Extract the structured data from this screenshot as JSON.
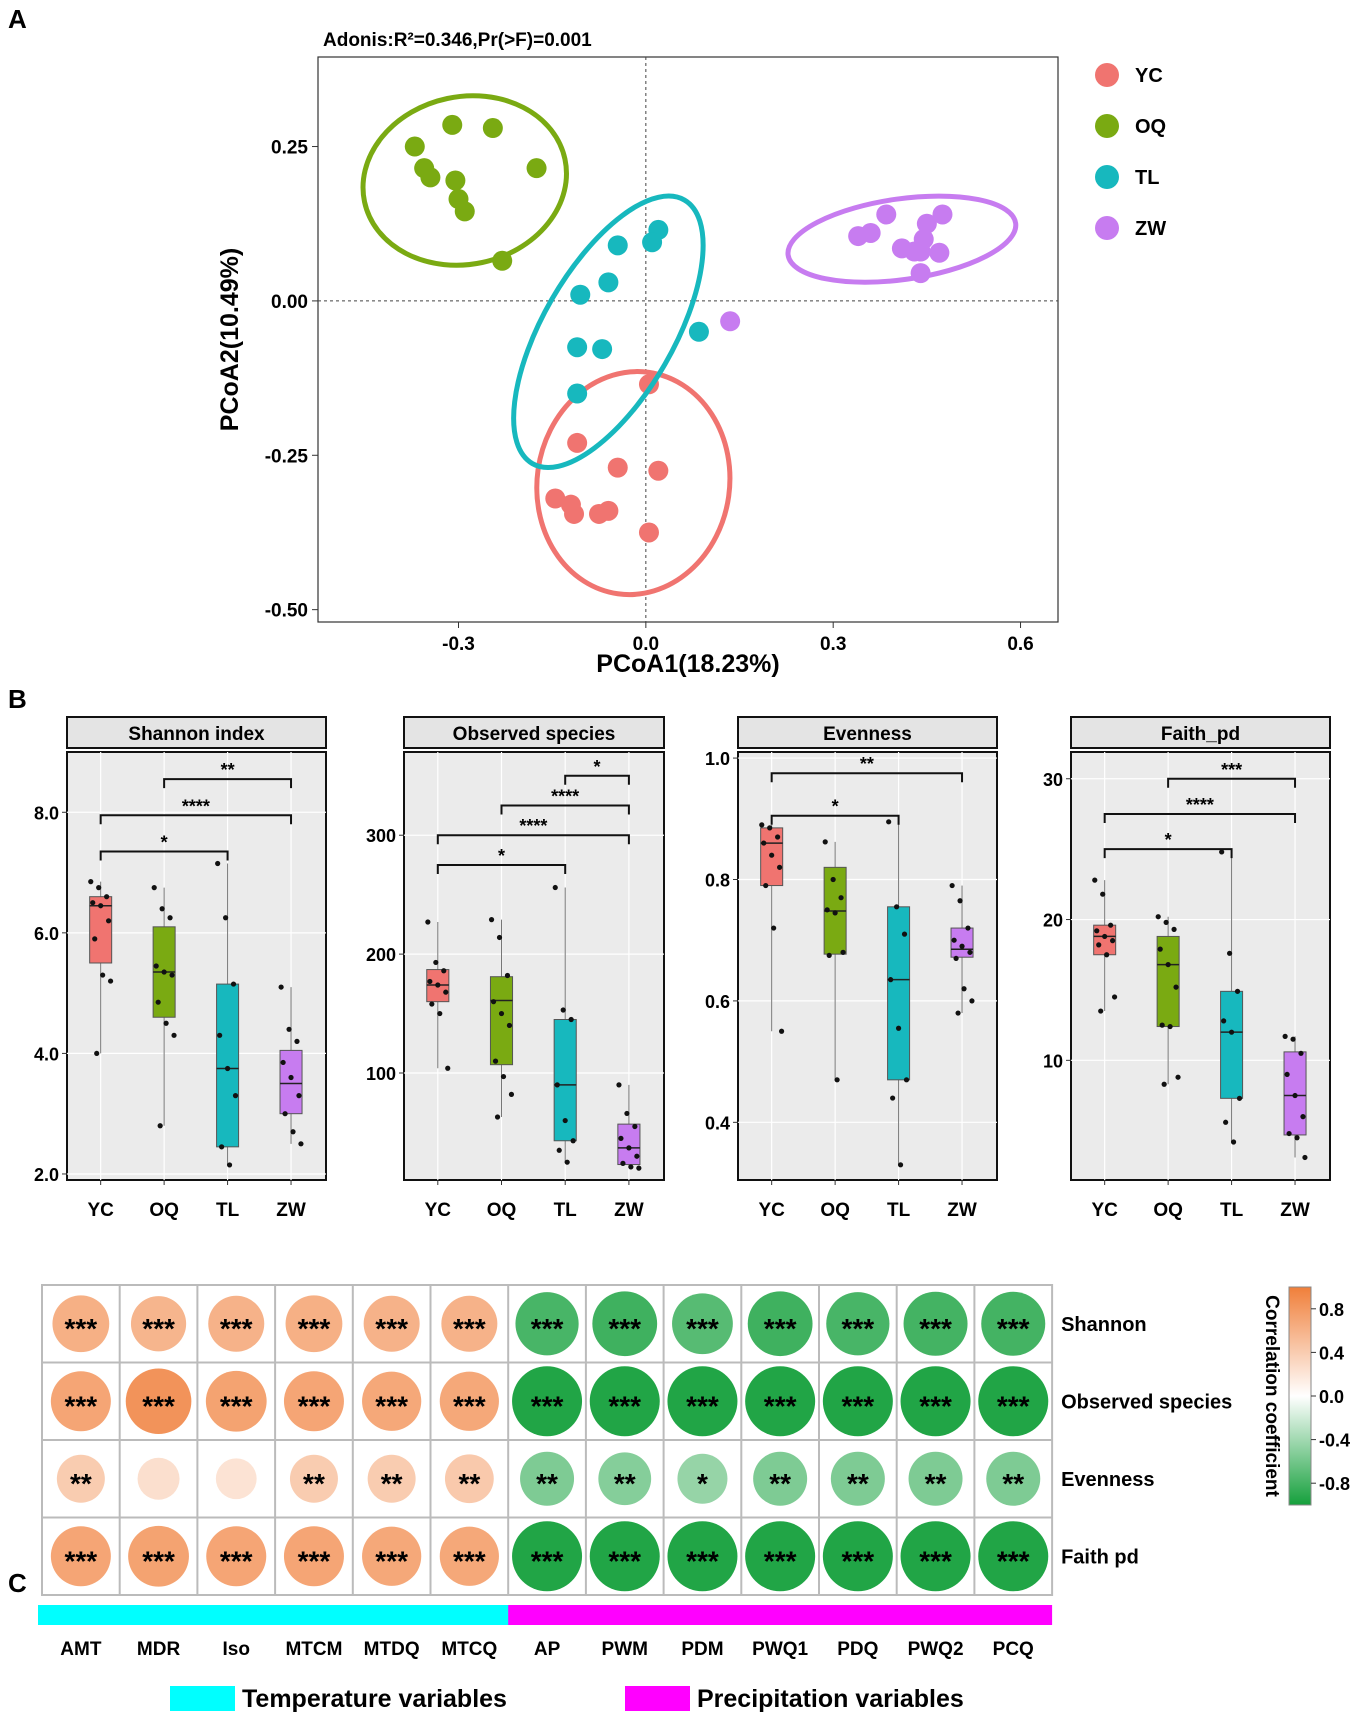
{
  "panels": {
    "a": "A",
    "b": "B",
    "c": "C"
  },
  "chart_data": [
    {
      "type": "scatter",
      "panel": "A",
      "title": "Adonis:R²=0.346,Pr(>F)=0.001",
      "xlabel": "PCoA1(18.23%)",
      "ylabel": "PCoA2(10.49%)",
      "xlim": [
        -0.525,
        0.66
      ],
      "ylim": [
        -0.52,
        0.395
      ],
      "xticks": [
        -0.3,
        0.0,
        0.3,
        0.6
      ],
      "xtick_labels": [
        "-0.3",
        "0.0",
        "0.3",
        "0.6"
      ],
      "yticks": [
        0.25,
        0.0,
        -0.25,
        -0.5
      ],
      "ytick_labels": [
        "0.25",
        "0.00",
        "-0.25",
        "-0.50"
      ],
      "reference_lines": {
        "x": 0,
        "y": 0
      },
      "legend": {
        "placement": "right",
        "entries": [
          "YC",
          "OQ",
          "TL",
          "ZW"
        ]
      },
      "series": [
        {
          "name": "YC",
          "color": "#F07470",
          "points": [
            [
              0.005,
              -0.135
            ],
            [
              -0.11,
              -0.23
            ],
            [
              -0.045,
              -0.27
            ],
            [
              0.02,
              -0.275
            ],
            [
              -0.145,
              -0.32
            ],
            [
              -0.12,
              -0.33
            ],
            [
              -0.115,
              -0.345
            ],
            [
              -0.075,
              -0.345
            ],
            [
              -0.06,
              -0.34
            ],
            [
              0.005,
              -0.375
            ]
          ],
          "ellipse": {
            "cx": -0.02,
            "cy": -0.295,
            "rx": 0.155,
            "ry": 0.18,
            "rotation_deg": 8
          }
        },
        {
          "name": "OQ",
          "color": "#7AAA12",
          "points": [
            [
              -0.37,
              0.25
            ],
            [
              -0.31,
              0.285
            ],
            [
              -0.245,
              0.28
            ],
            [
              -0.175,
              0.215
            ],
            [
              -0.355,
              0.215
            ],
            [
              -0.345,
              0.2
            ],
            [
              -0.305,
              0.195
            ],
            [
              -0.3,
              0.165
            ],
            [
              -0.29,
              0.145
            ],
            [
              -0.23,
              0.065
            ]
          ],
          "ellipse": {
            "cx": -0.29,
            "cy": 0.195,
            "rx": 0.165,
            "ry": 0.135,
            "rotation_deg": -12
          }
        },
        {
          "name": "TL",
          "color": "#17B8BE",
          "points": [
            [
              0.02,
              0.115
            ],
            [
              0.01,
              0.095
            ],
            [
              -0.045,
              0.09
            ],
            [
              -0.06,
              0.03
            ],
            [
              -0.105,
              0.01
            ],
            [
              0.085,
              -0.05
            ],
            [
              -0.11,
              -0.075
            ],
            [
              -0.07,
              -0.078
            ],
            [
              -0.11,
              -0.15
            ]
          ],
          "ellipse": {
            "cx": -0.06,
            "cy": -0.05,
            "rx": 0.245,
            "ry": 0.105,
            "rotation_deg": -60
          }
        },
        {
          "name": "ZW",
          "color": "#C77CF0",
          "points": [
            [
              0.135,
              -0.033
            ],
            [
              0.385,
              0.14
            ],
            [
              0.475,
              0.14
            ],
            [
              0.36,
              0.11
            ],
            [
              0.34,
              0.105
            ],
            [
              0.45,
              0.125
            ],
            [
              0.445,
              0.1
            ],
            [
              0.41,
              0.085
            ],
            [
              0.44,
              0.08
            ],
            [
              0.47,
              0.078
            ],
            [
              0.43,
              0.08
            ],
            [
              0.44,
              0.045
            ]
          ],
          "ellipse": {
            "cx": 0.41,
            "cy": 0.1,
            "rx": 0.185,
            "ry": 0.065,
            "rotation_deg": -8
          }
        }
      ]
    },
    {
      "type": "box",
      "panel": "B",
      "title": "Shannon index",
      "categories": [
        "YC",
        "OQ",
        "TL",
        "ZW"
      ],
      "colors": [
        "#F07470",
        "#7AAA12",
        "#17B8BE",
        "#C77CF0"
      ],
      "ylim": [
        1.9,
        9.0
      ],
      "yticks": [
        2.0,
        4.0,
        6.0,
        8.0
      ],
      "ytick_labels": [
        "2.0",
        "4.0",
        "6.0",
        "8.0"
      ],
      "boxes": [
        {
          "min": 4.0,
          "q1": 5.5,
          "median": 6.45,
          "q3": 6.6,
          "max": 6.85,
          "points": [
            6.85,
            6.75,
            6.6,
            6.5,
            6.45,
            6.2,
            5.9,
            5.3,
            5.2,
            4.0
          ]
        },
        {
          "min": 2.8,
          "q1": 4.6,
          "median": 5.35,
          "q3": 6.1,
          "max": 6.75,
          "points": [
            6.75,
            6.4,
            6.25,
            5.45,
            5.35,
            5.3,
            4.85,
            4.5,
            4.3,
            2.8
          ]
        },
        {
          "min": 2.15,
          "q1": 2.45,
          "median": 3.75,
          "q3": 5.15,
          "max": 7.15,
          "points": [
            7.15,
            6.25,
            5.15,
            4.3,
            3.75,
            3.3,
            2.45,
            2.15
          ]
        },
        {
          "min": 2.5,
          "q1": 3.0,
          "median": 3.5,
          "q3": 4.05,
          "max": 5.1,
          "points": [
            5.1,
            4.4,
            4.2,
            3.85,
            3.6,
            3.3,
            3.0,
            2.7,
            2.5
          ]
        }
      ],
      "comparisons": [
        {
          "from": "OQ",
          "to": "ZW",
          "label": "**",
          "y": 8.55
        },
        {
          "from": "YC",
          "to": "ZW",
          "label": "****",
          "y": 7.95
        },
        {
          "from": "YC",
          "to": "TL",
          "label": "*",
          "y": 7.35
        }
      ]
    },
    {
      "type": "box",
      "panel": "B",
      "title": "Observed species",
      "categories": [
        "YC",
        "OQ",
        "TL",
        "ZW"
      ],
      "colors": [
        "#F07470",
        "#7AAA12",
        "#17B8BE",
        "#C77CF0"
      ],
      "ylim": [
        10,
        370
      ],
      "yticks": [
        100,
        200,
        300
      ],
      "ytick_labels": [
        "100",
        "200",
        "300"
      ],
      "boxes": [
        {
          "min": 104,
          "q1": 160,
          "median": 174,
          "q3": 187,
          "max": 227,
          "points": [
            227,
            193,
            186,
            177,
            174,
            168,
            158,
            150,
            104
          ]
        },
        {
          "min": 63,
          "q1": 107,
          "median": 161,
          "q3": 181,
          "max": 229,
          "points": [
            229,
            214,
            182,
            160,
            150,
            140,
            110,
            97,
            82,
            63
          ]
        },
        {
          "min": 25,
          "q1": 43,
          "median": 90,
          "q3": 145,
          "max": 256,
          "points": [
            256,
            153,
            145,
            90,
            60,
            43,
            35,
            25
          ]
        },
        {
          "min": 20,
          "q1": 23,
          "median": 37,
          "q3": 57,
          "max": 90,
          "points": [
            90,
            66,
            55,
            45,
            37,
            30,
            24,
            21,
            20
          ]
        }
      ],
      "comparisons": [
        {
          "from": "TL",
          "to": "ZW",
          "label": "*",
          "y": 350
        },
        {
          "from": "OQ",
          "to": "ZW",
          "label": "****",
          "y": 325
        },
        {
          "from": "YC",
          "to": "ZW",
          "label": "****",
          "y": 300
        },
        {
          "from": "YC",
          "to": "TL",
          "label": "*",
          "y": 275
        }
      ]
    },
    {
      "type": "box",
      "panel": "B",
      "title": "Evenness",
      "categories": [
        "YC",
        "OQ",
        "TL",
        "ZW"
      ],
      "colors": [
        "#F07470",
        "#7AAA12",
        "#17B8BE",
        "#C77CF0"
      ],
      "ylim": [
        0.305,
        1.01
      ],
      "yticks": [
        0.4,
        0.6,
        0.8,
        1.0
      ],
      "ytick_labels": [
        "0.4",
        "0.6",
        "0.8",
        "1.0"
      ],
      "boxes": [
        {
          "min": 0.55,
          "q1": 0.79,
          "median": 0.86,
          "q3": 0.885,
          "max": 0.89,
          "points": [
            0.89,
            0.885,
            0.87,
            0.86,
            0.84,
            0.82,
            0.79,
            0.72,
            0.55
          ]
        },
        {
          "min": 0.47,
          "q1": 0.677,
          "median": 0.748,
          "q3": 0.82,
          "max": 0.862,
          "points": [
            0.862,
            0.8,
            0.77,
            0.75,
            0.745,
            0.68,
            0.675,
            0.47
          ]
        },
        {
          "min": 0.33,
          "q1": 0.47,
          "median": 0.635,
          "q3": 0.755,
          "max": 0.895,
          "points": [
            0.895,
            0.755,
            0.71,
            0.635,
            0.555,
            0.47,
            0.44,
            0.33
          ]
        },
        {
          "min": 0.58,
          "q1": 0.672,
          "median": 0.685,
          "q3": 0.72,
          "max": 0.79,
          "points": [
            0.79,
            0.765,
            0.72,
            0.7,
            0.69,
            0.68,
            0.67,
            0.62,
            0.6,
            0.58
          ]
        }
      ],
      "comparisons": [
        {
          "from": "YC",
          "to": "ZW",
          "label": "**",
          "y": 0.975
        },
        {
          "from": "YC",
          "to": "TL",
          "label": "*",
          "y": 0.905
        }
      ]
    },
    {
      "type": "box",
      "panel": "B",
      "title": "Faith_pd",
      "categories": [
        "YC",
        "OQ",
        "TL",
        "ZW"
      ],
      "colors": [
        "#F07470",
        "#7AAA12",
        "#17B8BE",
        "#C77CF0"
      ],
      "ylim": [
        1.5,
        31.9
      ],
      "yticks": [
        10,
        20,
        30
      ],
      "ytick_labels": [
        "10",
        "20",
        "30"
      ],
      "boxes": [
        {
          "min": 13.5,
          "q1": 17.5,
          "median": 18.8,
          "q3": 19.6,
          "max": 22.8,
          "points": [
            22.8,
            21.8,
            19.6,
            19.2,
            18.8,
            18.5,
            18.2,
            17.5,
            14.5,
            13.5
          ]
        },
        {
          "min": 8.3,
          "q1": 12.4,
          "median": 16.8,
          "q3": 18.8,
          "max": 20.2,
          "points": [
            20.2,
            19.8,
            19.3,
            17.9,
            16.8,
            15.2,
            12.5,
            12.4,
            8.8,
            8.3
          ]
        },
        {
          "min": 4.2,
          "q1": 7.3,
          "median": 12.0,
          "q3": 14.9,
          "max": 24.8,
          "points": [
            24.8,
            17.6,
            14.9,
            12.8,
            12.0,
            7.3,
            5.6,
            4.2
          ]
        },
        {
          "min": 3.1,
          "q1": 4.7,
          "median": 7.5,
          "q3": 10.6,
          "max": 11.7,
          "points": [
            11.7,
            11.5,
            10.5,
            9.0,
            7.5,
            6.0,
            4.8,
            4.5,
            3.1
          ]
        }
      ],
      "comparisons": [
        {
          "from": "OQ",
          "to": "ZW",
          "label": "***",
          "y": 30.0
        },
        {
          "from": "YC",
          "to": "ZW",
          "label": "****",
          "y": 27.5
        },
        {
          "from": "YC",
          "to": "TL",
          "label": "*",
          "y": 25.0
        }
      ]
    },
    {
      "type": "heatmap",
      "panel": "C",
      "rows": [
        "Shannon",
        "Observed species",
        "Evenness",
        "Faith pd"
      ],
      "columns": [
        "AMT",
        "MDR",
        "Iso",
        "MTCM",
        "MTDQ",
        "MTCQ",
        "AP",
        "PWM",
        "PDM",
        "PWQ1",
        "PDQ",
        "PWQ2",
        "PCQ"
      ],
      "values": [
        [
          0.62,
          0.58,
          0.6,
          0.62,
          0.6,
          0.6,
          -0.78,
          -0.82,
          -0.72,
          -0.82,
          -0.78,
          -0.8,
          -0.8
        ],
        [
          0.7,
          0.84,
          0.72,
          0.7,
          0.68,
          0.68,
          -0.95,
          -0.95,
          -0.95,
          -0.95,
          -0.95,
          -0.95,
          -0.95
        ],
        [
          0.4,
          0.25,
          0.22,
          0.4,
          0.4,
          0.42,
          -0.55,
          -0.52,
          -0.45,
          -0.55,
          -0.55,
          -0.55,
          -0.55
        ],
        [
          0.7,
          0.72,
          0.7,
          0.7,
          0.68,
          0.68,
          -0.95,
          -0.95,
          -0.95,
          -0.95,
          -0.95,
          -0.95,
          -0.95
        ]
      ],
      "significance": [
        [
          "***",
          "***",
          "***",
          "***",
          "***",
          "***",
          "***",
          "***",
          "***",
          "***",
          "***",
          "***",
          "***"
        ],
        [
          "***",
          "***",
          "***",
          "***",
          "***",
          "***",
          "***",
          "***",
          "***",
          "***",
          "***",
          "***",
          "***"
        ],
        [
          "**",
          "",
          "",
          "**",
          "**",
          "**",
          "**",
          "**",
          "*",
          "**",
          "**",
          "**",
          "**"
        ],
        [
          "***",
          "***",
          "***",
          "***",
          "***",
          "***",
          "***",
          "***",
          "***",
          "***",
          "***",
          "***",
          "***"
        ]
      ],
      "colorbar": {
        "title": "Correlation coefficient",
        "range": [
          -1,
          1
        ],
        "ticks": [
          0.8,
          0.4,
          0.0,
          -0.4,
          -0.8
        ],
        "tick_labels": [
          "0.8",
          "0.4",
          "0.0",
          "-0.4",
          "-0.8"
        ],
        "colors": {
          "high": "#F07F3A",
          "mid": "#FFFFFF",
          "low": "#15A03C"
        }
      },
      "groups": [
        {
          "label": "Temperature variables",
          "color": "#00FFFF",
          "columns": [
            "AMT",
            "MDR",
            "Iso",
            "MTCM",
            "MTDQ",
            "MTCQ"
          ]
        },
        {
          "label": "Precipitation variables",
          "color": "#FF00FF",
          "columns": [
            "AP",
            "PWM",
            "PDM",
            "PWQ1",
            "PDQ",
            "PWQ2",
            "PCQ"
          ]
        }
      ]
    }
  ]
}
